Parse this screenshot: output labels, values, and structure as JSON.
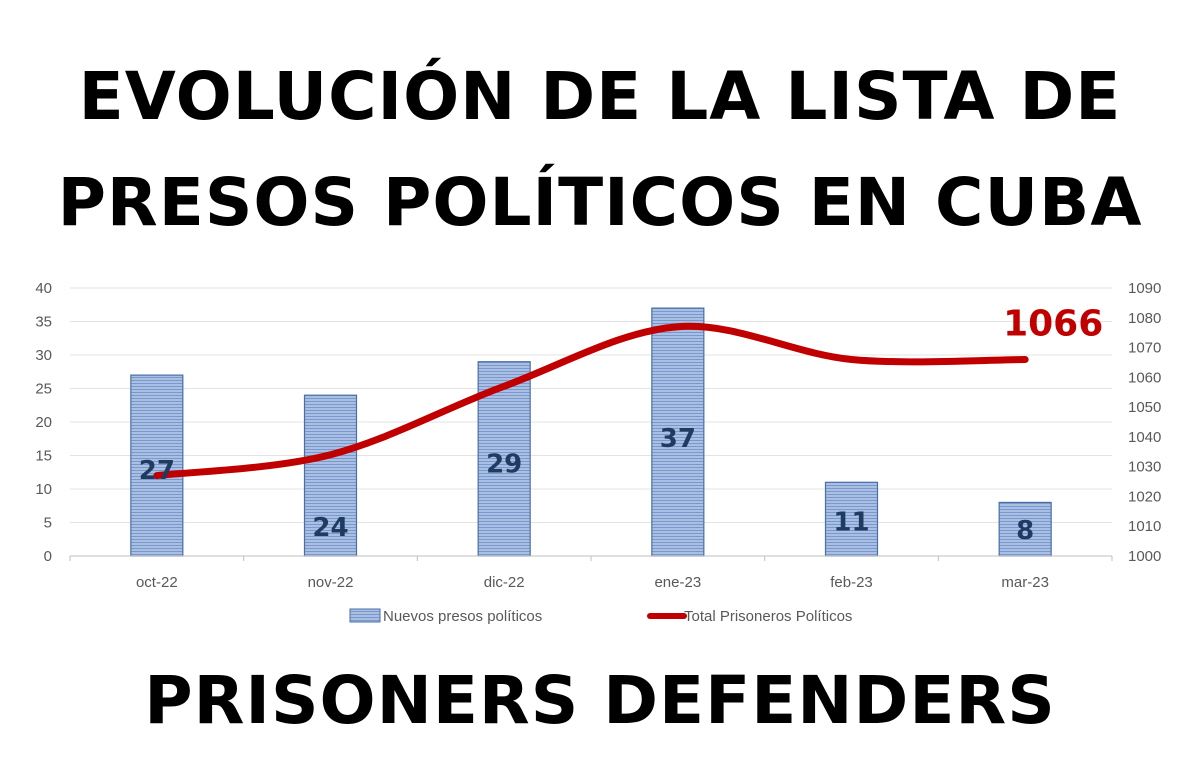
{
  "title": {
    "line1": "EVOLUCIÓN DE LA LISTA DE",
    "line2": "PRESOS POLÍTICOS EN CUBA"
  },
  "footer": "PRISONERS DEFENDERS",
  "chart_data": {
    "type": "bar",
    "categories": [
      "oct-22",
      "nov-22",
      "dic-22",
      "ene-23",
      "feb-23",
      "mar-23"
    ],
    "series": [
      {
        "name": "Nuevos presos políticos",
        "type": "bar",
        "axis": "left",
        "values": [
          27,
          24,
          29,
          37,
          11,
          8
        ],
        "data_labels": [
          "27",
          "24",
          "29",
          "37",
          "11",
          "8"
        ],
        "color": "#8eaadb",
        "edge_color": "#4a6fa5"
      },
      {
        "name": "Total Prisoneros Políticos",
        "type": "line",
        "axis": "right",
        "values": [
          1027,
          1034,
          1057,
          1077,
          1066,
          1066
        ],
        "color": "#c00000"
      }
    ],
    "callout": {
      "text": "1066",
      "series": 1,
      "index": 5
    },
    "y_left": {
      "range": [
        0,
        40
      ],
      "ticks": [
        "0",
        "5",
        "10",
        "15",
        "20",
        "25",
        "30",
        "35",
        "40"
      ]
    },
    "y_right": {
      "range": [
        1000,
        1090
      ],
      "ticks": [
        "1000",
        "1010",
        "1020",
        "1030",
        "1040",
        "1050",
        "1060",
        "1070",
        "1080",
        "1090"
      ]
    },
    "grid": true,
    "legend_position": "bottom"
  }
}
